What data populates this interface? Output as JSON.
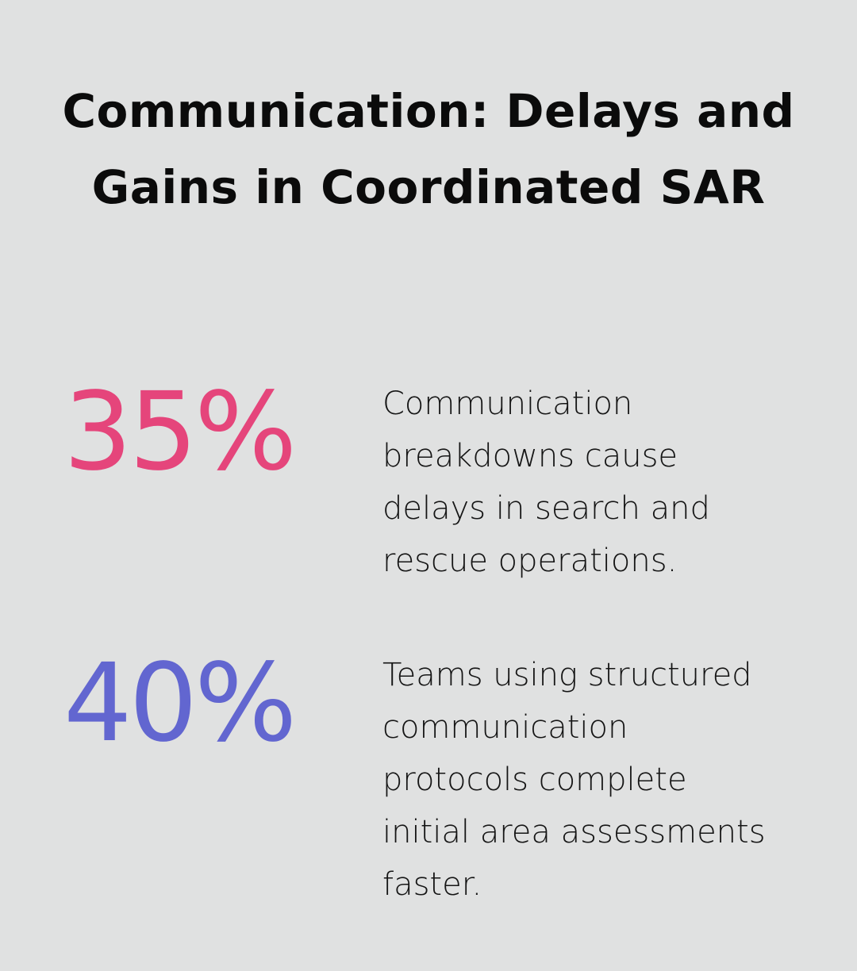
{
  "title": "Communication: Delays and Gains in Coordinated SAR",
  "stats": [
    {
      "value": "35%",
      "color": "#e5457b",
      "description": "Communication\nbreakdowns cause\ndelays in search and\nrescue operations."
    },
    {
      "value": "40%",
      "color": "#6266d0",
      "description": "Teams using structured\ncommunication\nprotocols complete\ninitial area assessments\nfaster."
    }
  ]
}
